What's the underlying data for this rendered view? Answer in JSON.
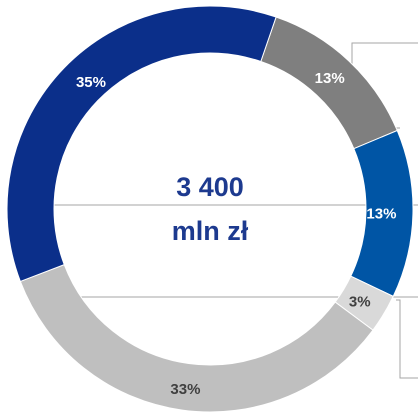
{
  "chart_data": {
    "type": "pie",
    "center_label": {
      "line1": "3 400",
      "line2": "mln zł"
    },
    "slices": [
      {
        "label": "13%",
        "value": 13,
        "color": "#7f7f7f",
        "label_color": "#ffffff"
      },
      {
        "label": "13%",
        "value": 13,
        "color": "#0055a5",
        "label_color": "#ffffff"
      },
      {
        "label": "3%",
        "value": 3,
        "color": "#d9d9d9",
        "label_color": "#404040"
      },
      {
        "label": "33%",
        "value": 33,
        "color": "#bfbfbf",
        "label_color": "#404040"
      },
      {
        "label": "35%",
        "value": 35,
        "color": "#0b2f8a",
        "label_color": "#ffffff"
      }
    ],
    "legend": "none",
    "colors": {
      "center_text": "#1d3a8f",
      "leader_lines": "#a6a6a6"
    }
  }
}
